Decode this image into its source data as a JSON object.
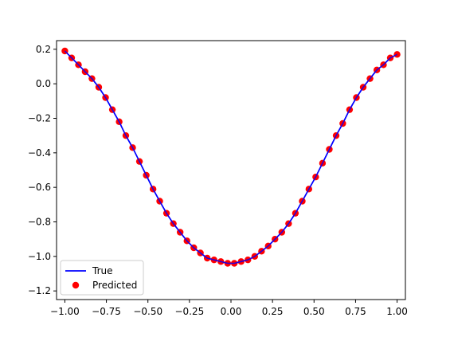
{
  "chart_data": {
    "type": "line",
    "title": "",
    "xlabel": "",
    "ylabel": "",
    "xlim": [
      -1.05,
      1.05
    ],
    "ylim": [
      -1.25,
      0.25
    ],
    "x_ticks": [
      -1.0,
      -0.75,
      -0.5,
      -0.25,
      0.0,
      0.25,
      0.5,
      0.75,
      1.0
    ],
    "x_tick_labels": [
      "−1.00",
      "−0.75",
      "−0.50",
      "−0.25",
      "0.00",
      "0.25",
      "0.50",
      "0.75",
      "1.00"
    ],
    "y_ticks": [
      0.2,
      0.0,
      -0.2,
      -0.4,
      -0.6,
      -0.8,
      -1.0,
      -1.2
    ],
    "y_tick_labels": [
      "0.2",
      "0.0",
      "−0.2",
      "−0.4",
      "−0.6",
      "−0.8",
      "−1.0",
      "−1.2"
    ],
    "grid": false,
    "legend_position": "lower-left",
    "series": [
      {
        "name": "True",
        "kind": "line",
        "color": "#0000ff",
        "x": [
          -1.0,
          -0.959,
          -0.918,
          -0.878,
          -0.837,
          -0.796,
          -0.755,
          -0.714,
          -0.673,
          -0.633,
          -0.592,
          -0.551,
          -0.51,
          -0.469,
          -0.429,
          -0.388,
          -0.347,
          -0.306,
          -0.265,
          -0.224,
          -0.184,
          -0.143,
          -0.102,
          -0.061,
          -0.02,
          0.02,
          0.061,
          0.102,
          0.143,
          0.184,
          0.224,
          0.265,
          0.306,
          0.347,
          0.388,
          0.429,
          0.469,
          0.51,
          0.551,
          0.592,
          0.633,
          0.673,
          0.714,
          0.755,
          0.796,
          0.837,
          0.878,
          0.918,
          0.959,
          1.0
        ],
        "y": [
          0.19,
          0.15,
          0.11,
          0.07,
          0.03,
          -0.02,
          -0.08,
          -0.15,
          -0.22,
          -0.3,
          -0.37,
          -0.45,
          -0.53,
          -0.61,
          -0.68,
          -0.75,
          -0.81,
          -0.86,
          -0.91,
          -0.95,
          -0.98,
          -1.01,
          -1.02,
          -1.03,
          -1.04,
          -1.04,
          -1.03,
          -1.02,
          -1.0,
          -0.97,
          -0.94,
          -0.9,
          -0.86,
          -0.81,
          -0.75,
          -0.68,
          -0.61,
          -0.54,
          -0.46,
          -0.38,
          -0.3,
          -0.23,
          -0.15,
          -0.08,
          -0.02,
          0.03,
          0.08,
          0.11,
          0.15,
          0.17
        ]
      },
      {
        "name": "Predicted",
        "kind": "scatter",
        "color": "#ff0000",
        "x": [
          -1.0,
          -0.959,
          -0.918,
          -0.878,
          -0.837,
          -0.796,
          -0.755,
          -0.714,
          -0.673,
          -0.633,
          -0.592,
          -0.551,
          -0.51,
          -0.469,
          -0.429,
          -0.388,
          -0.347,
          -0.306,
          -0.265,
          -0.224,
          -0.184,
          -0.143,
          -0.102,
          -0.061,
          -0.02,
          0.02,
          0.061,
          0.102,
          0.143,
          0.184,
          0.224,
          0.265,
          0.306,
          0.347,
          0.388,
          0.429,
          0.469,
          0.51,
          0.551,
          0.592,
          0.633,
          0.673,
          0.714,
          0.755,
          0.796,
          0.837,
          0.878,
          0.918,
          0.959,
          1.0
        ],
        "y": [
          0.19,
          0.15,
          0.11,
          0.07,
          0.03,
          -0.02,
          -0.08,
          -0.15,
          -0.22,
          -0.3,
          -0.37,
          -0.45,
          -0.53,
          -0.61,
          -0.68,
          -0.75,
          -0.81,
          -0.86,
          -0.91,
          -0.95,
          -0.98,
          -1.01,
          -1.02,
          -1.03,
          -1.04,
          -1.04,
          -1.03,
          -1.02,
          -1.0,
          -0.97,
          -0.94,
          -0.9,
          -0.86,
          -0.81,
          -0.75,
          -0.68,
          -0.61,
          -0.54,
          -0.46,
          -0.38,
          -0.3,
          -0.23,
          -0.15,
          -0.08,
          -0.02,
          0.03,
          0.08,
          0.11,
          0.15,
          0.17
        ]
      }
    ]
  }
}
